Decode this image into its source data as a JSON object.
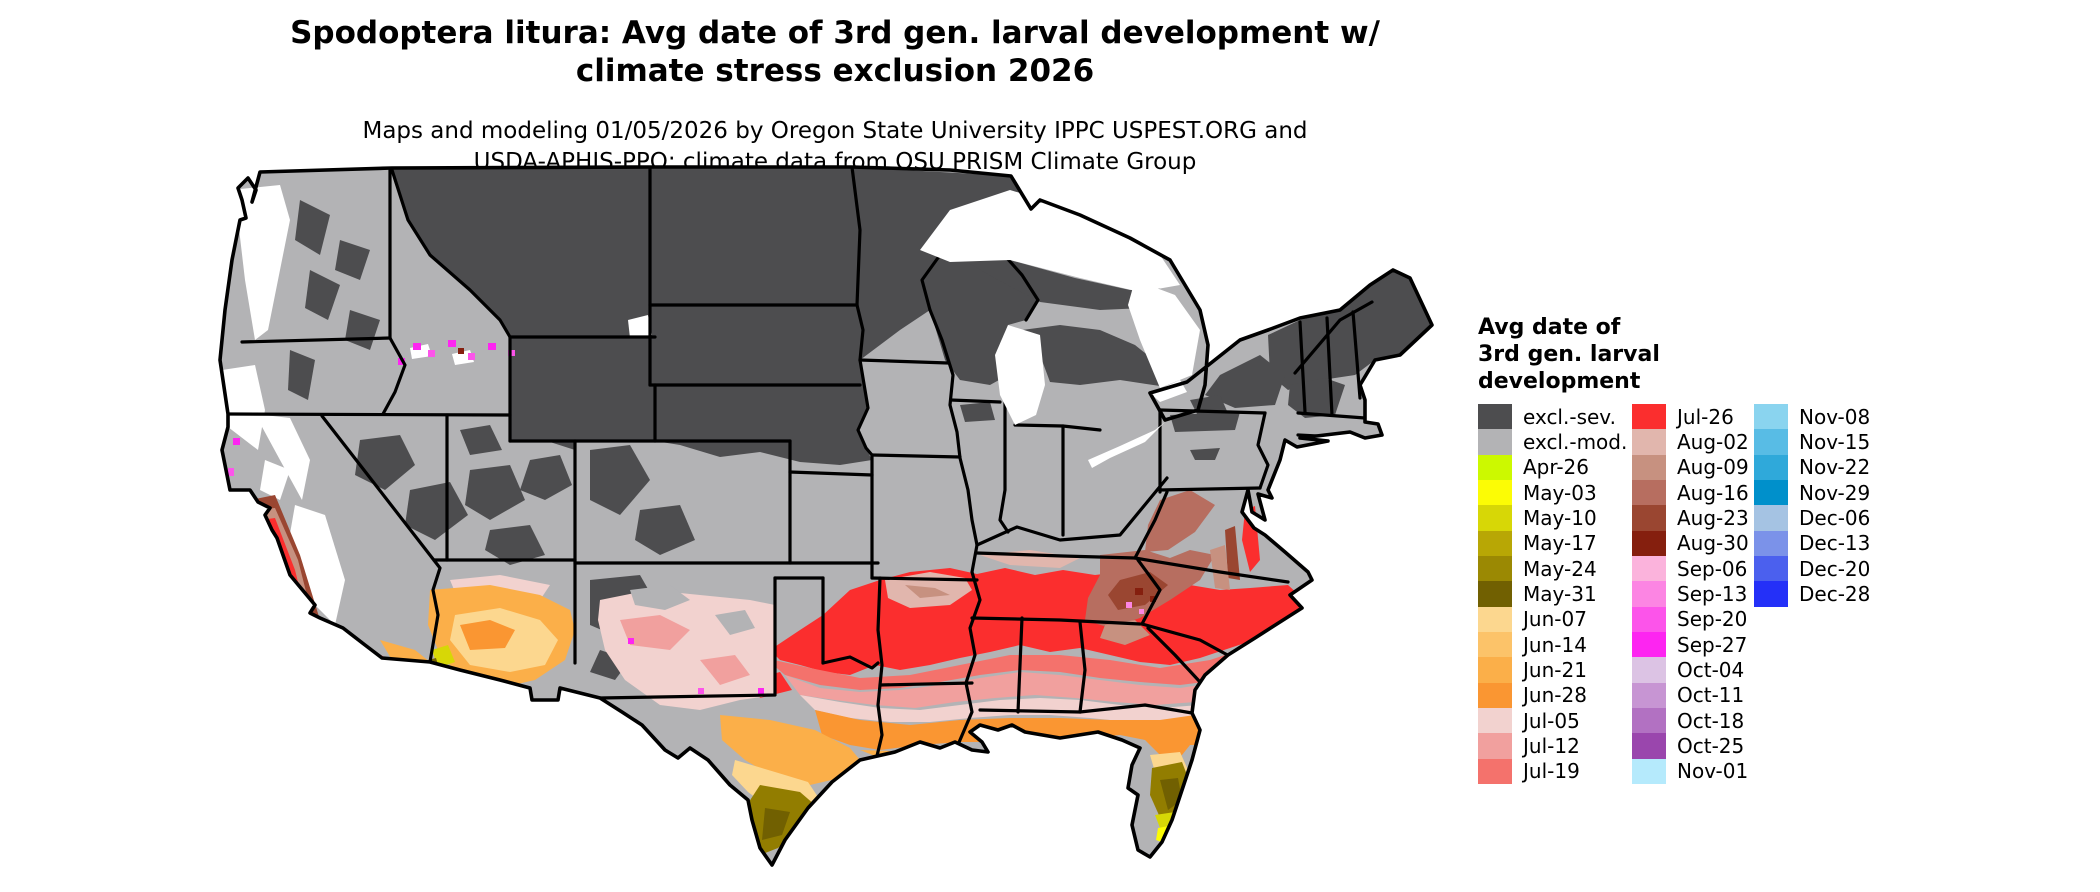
{
  "header": {
    "title_line1": "Spodoptera litura: Avg date of 3rd gen. larval development w/",
    "title_line2": "climate stress exclusion 2026",
    "subtitle_line1": "Maps and modeling 01/05/2026 by Oregon State University IPPC USPEST.ORG and",
    "subtitle_line2": "USDA-APHIS-PPQ; climate data from OSU PRISM Climate Group"
  },
  "legend": {
    "title_lines": [
      "Avg date of",
      "3rd gen. larval",
      "development"
    ],
    "columns": [
      {
        "entries": [
          {
            "label": "excl.-sev.",
            "color": "#4d4d4f"
          },
          {
            "label": "excl.-mod.",
            "color": "#b3b3b5"
          },
          {
            "label": "Apr-26",
            "color": "#ccf900"
          },
          {
            "label": "May-03",
            "color": "#fcfc05"
          },
          {
            "label": "May-10",
            "color": "#d7d706"
          },
          {
            "label": "May-17",
            "color": "#b8a705"
          },
          {
            "label": "May-24",
            "color": "#9b8903"
          },
          {
            "label": "May-31",
            "color": "#716001"
          },
          {
            "label": "Jun-07",
            "color": "#fcd78f"
          },
          {
            "label": "Jun-14",
            "color": "#fcc369"
          },
          {
            "label": "Jun-21",
            "color": "#fbaf49"
          },
          {
            "label": "Jun-28",
            "color": "#fa9632"
          },
          {
            "label": "Jul-05",
            "color": "#f2d2cf"
          },
          {
            "label": "Jul-12",
            "color": "#f1a09e"
          },
          {
            "label": "Jul-19",
            "color": "#f4726c"
          }
        ]
      },
      {
        "entries": [
          {
            "label": "Jul-26",
            "color": "#fb2e2e"
          },
          {
            "label": "Aug-02",
            "color": "#e1b6ad"
          },
          {
            "label": "Aug-09",
            "color": "#c79180"
          },
          {
            "label": "Aug-16",
            "color": "#b76e60"
          },
          {
            "label": "Aug-23",
            "color": "#9a4631"
          },
          {
            "label": "Aug-30",
            "color": "#851f0e"
          },
          {
            "label": "Sep-06",
            "color": "#fbb3dc"
          },
          {
            "label": "Sep-13",
            "color": "#fc85e3"
          },
          {
            "label": "Sep-20",
            "color": "#fc54ea"
          },
          {
            "label": "Sep-27",
            "color": "#fd25f1"
          },
          {
            "label": "Oct-04",
            "color": "#dcc3e4"
          },
          {
            "label": "Oct-11",
            "color": "#c795d3"
          },
          {
            "label": "Oct-18",
            "color": "#b271c2"
          },
          {
            "label": "Oct-25",
            "color": "#9a46ad"
          },
          {
            "label": "Nov-01",
            "color": "#b5eafc"
          }
        ]
      },
      {
        "entries": [
          {
            "label": "Nov-08",
            "color": "#8ad4ef"
          },
          {
            "label": "Nov-15",
            "color": "#58bce5"
          },
          {
            "label": "Nov-22",
            "color": "#2fa9da"
          },
          {
            "label": "Nov-29",
            "color": "#0090cb"
          },
          {
            "label": "Dec-06",
            "color": "#a5c3e3"
          },
          {
            "label": "Dec-13",
            "color": "#7b92e9"
          },
          {
            "label": "Dec-20",
            "color": "#4b60ee"
          },
          {
            "label": "Dec-28",
            "color": "#2430f8"
          }
        ]
      }
    ]
  }
}
